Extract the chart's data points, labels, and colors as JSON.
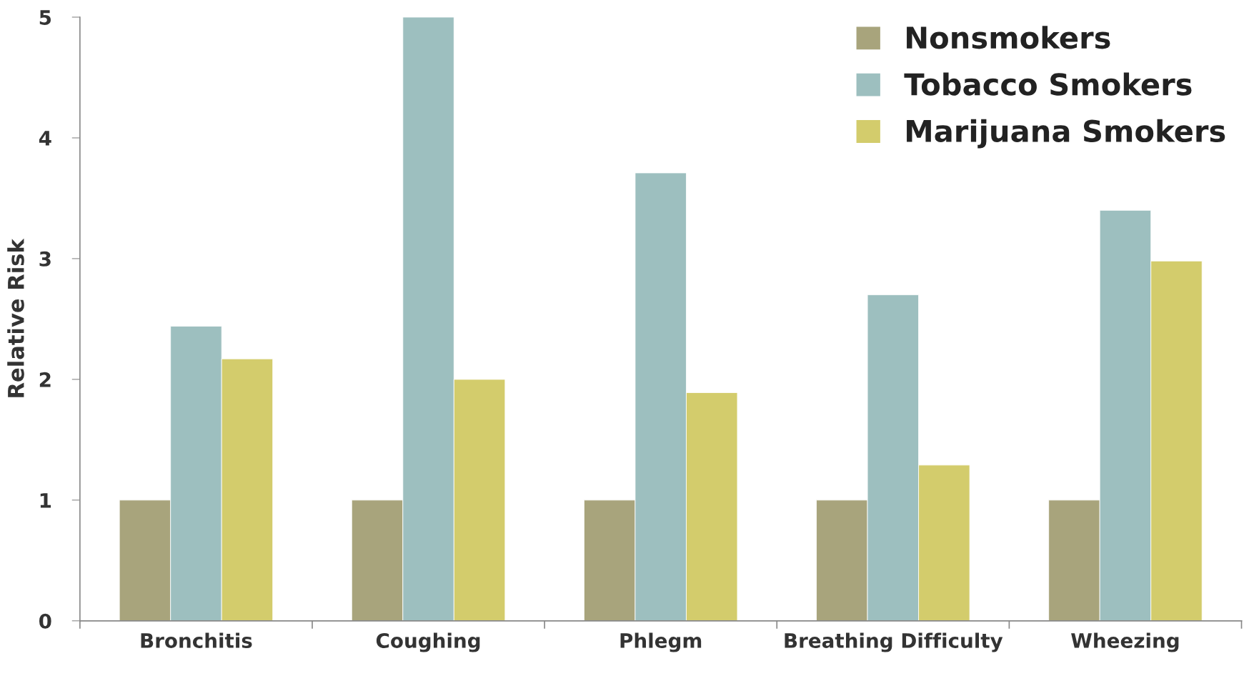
{
  "chart_data": {
    "type": "bar",
    "ylabel": "Relative Risk",
    "categories": [
      "Bronchitis",
      "Coughing",
      "Phlegm",
      "Breathing Difficulty",
      "Wheezing"
    ],
    "series": [
      {
        "name": "Nonsmokers",
        "color": "#a8a47c",
        "values": [
          1,
          1,
          1,
          1,
          1
        ]
      },
      {
        "name": "Tobacco Smokers",
        "color": "#9dbfbf",
        "values": [
          2.44,
          5.0,
          3.71,
          2.7,
          3.4
        ]
      },
      {
        "name": "Marijuana Smokers",
        "color": "#d3cc6c",
        "values": [
          2.17,
          2.0,
          1.89,
          1.29,
          2.98
        ]
      }
    ],
    "ylim": [
      0,
      5
    ],
    "yticks": [
      0,
      1,
      2,
      3,
      4,
      5
    ],
    "grid": false,
    "legend": "top right"
  }
}
